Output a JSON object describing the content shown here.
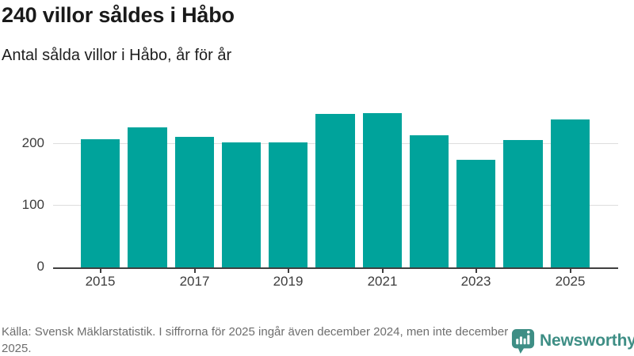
{
  "header": {
    "title": "240 villor såldes i Håbo",
    "subtitle": "Antal sålda villor i Håbo, år för år"
  },
  "chart_data": {
    "type": "bar",
    "categories": [
      2015,
      2016,
      2017,
      2018,
      2019,
      2020,
      2021,
      2022,
      2023,
      2024,
      2025
    ],
    "values": [
      207,
      227,
      212,
      202,
      202,
      248,
      250,
      214,
      174,
      206,
      240
    ],
    "title": "240 villor såldes i Håbo",
    "subtitle": "Antal sålda villor i Håbo, år för år",
    "xlabel": "",
    "ylabel": "",
    "ylim": [
      0,
      264
    ],
    "yticks": [
      0,
      100,
      200
    ],
    "xtick_labels": [
      "2015",
      "2017",
      "2019",
      "2021",
      "2023",
      "2025"
    ],
    "bar_color": "#00a39b",
    "grid": true,
    "gridline_color": "#dedede",
    "axis_color": "#3f3f3f",
    "legend": false
  },
  "footer": {
    "source_text": "Källa: Svensk Mäklarstatistik. I siffrorna för 2025 ingår även december 2024, men inte december 2025.",
    "brand": {
      "name": "Newsworthy",
      "color": "#3e8e85"
    }
  }
}
